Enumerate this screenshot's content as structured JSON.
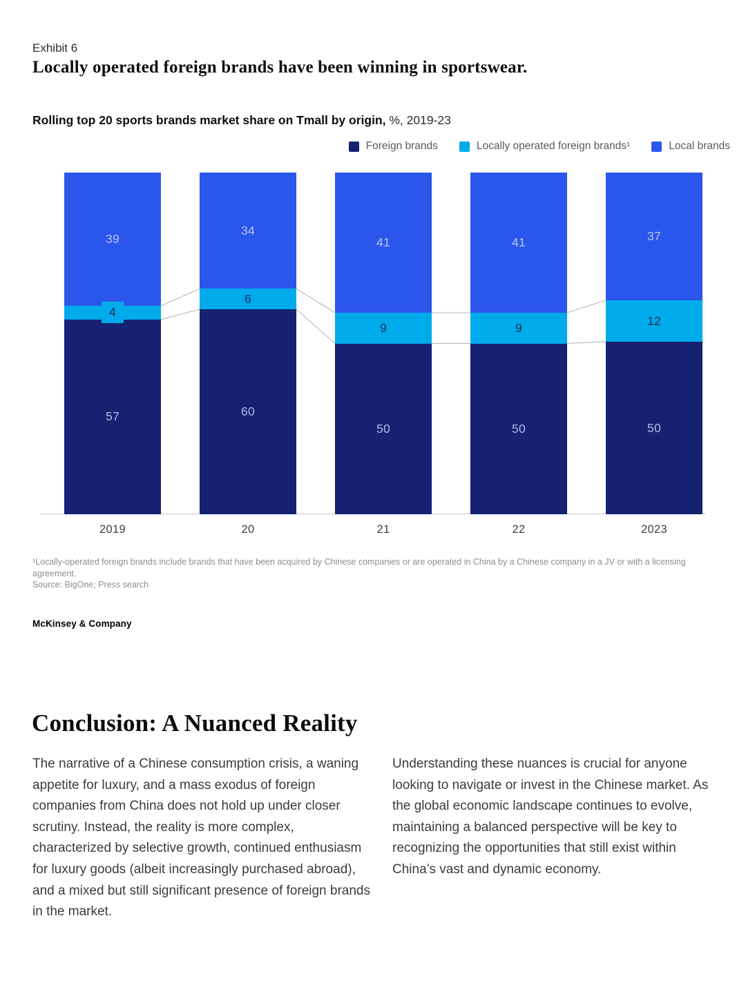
{
  "page": {
    "exhibit_label": "Exhibit 6",
    "title": "Locally operated foreign brands have been winning in sportswear."
  },
  "chart": {
    "subtitle_bold": "Rolling top 20 sports brands market share on Tmall by origin,",
    "subtitle_regular": " %, 2019-23",
    "footnote": "¹Locally-operated foreign brands include brands that have been acquired by Chinese companies or are operated in China by a Chinese company in a JV or with a licensing agreement.",
    "source": "Source: BigOne; Press search",
    "brand": "McKinsey & Company"
  },
  "chart_data": {
    "type": "bar",
    "variant": "stacked-column-100",
    "title": "Rolling top 20 sports brands market share on Tmall by origin, %, 2019-23",
    "unit": "%",
    "ylim": [
      0,
      100
    ],
    "gridlines": false,
    "legend_position": "top-right",
    "categories": [
      "2019",
      "20",
      "21",
      "22",
      "2023"
    ],
    "series": [
      {
        "name": "Foreign brands",
        "color": "#152271",
        "label_color": "#AEB9E6",
        "values": [
          57,
          60,
          50,
          50,
          50
        ]
      },
      {
        "name": "Locally operated foreign brands¹",
        "color": "#00ABEC",
        "label_color": "#1B2B55",
        "values": [
          4,
          6,
          9,
          9,
          12
        ]
      },
      {
        "name": "Local brands",
        "color": "#2B56EC",
        "label_color": "#BAC5F0",
        "values": [
          39,
          34,
          41,
          41,
          37
        ]
      }
    ],
    "stack_order_bottom_to_top": [
      "Foreign brands",
      "Locally operated foreign brands¹",
      "Local brands"
    ],
    "connector_line_color": "#b0b0b0",
    "axis_line_color": "#c9c9c9"
  },
  "conclusion": {
    "heading": "Conclusion: A Nuanced Reality",
    "left_paragraph": "The narrative of a Chinese consumption crisis, a waning appetite for luxury, and a mass exodus of foreign companies from China does not hold up under closer scrutiny. Instead, the reality is more complex, characterized by selective growth, continued enthusiasm for luxury goods (albeit increasingly purchased abroad), and a mixed but still significant presence of foreign brands in the market.",
    "right_paragraph": "Understanding these nuances is crucial for anyone looking to navigate or invest in the Chinese market. As the global economic landscape continues to evolve, maintaining a balanced perspective will be key to recognizing the opportunities that still exist within China’s vast and dynamic economy."
  }
}
